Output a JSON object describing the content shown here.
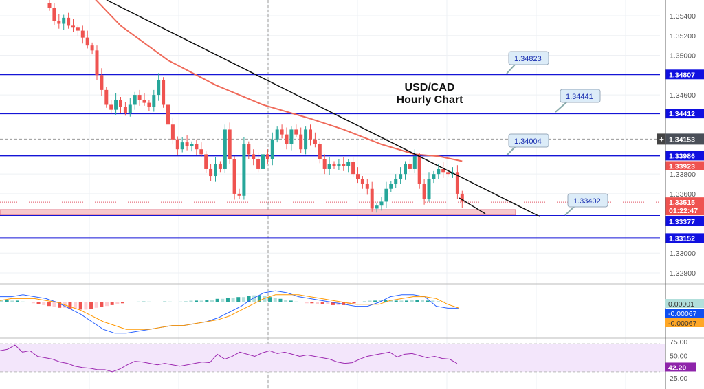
{
  "chart_data": {
    "type": "candlestick",
    "title_lines": [
      "USD/CAD",
      "Hourly Chart"
    ],
    "ylim": [
      1.327,
      1.3558
    ],
    "y_ticks": [
      "1.35400",
      "1.35200",
      "1.35000",
      "1.34600",
      "1.33800",
      "1.33600",
      "1.33000",
      "1.32800"
    ],
    "closes": [
      1.3548,
      1.3535,
      1.3532,
      1.3538,
      1.353,
      1.3528,
      1.3525,
      1.3518,
      1.351,
      1.3505,
      1.348,
      1.3465,
      1.345,
      1.3445,
      1.3455,
      1.3448,
      1.3442,
      1.345,
      1.346,
      1.3455,
      1.3452,
      1.3448,
      1.346,
      1.3475,
      1.345,
      1.343,
      1.3415,
      1.3405,
      1.3412,
      1.3408,
      1.341,
      1.3405,
      1.34,
      1.3385,
      1.3378,
      1.339,
      1.3385,
      1.3425,
      1.3395,
      1.336,
      1.3358,
      1.341,
      1.34,
      1.3395,
      1.3385,
      1.34,
      1.3395,
      1.3415,
      1.3425,
      1.342,
      1.341,
      1.3425,
      1.342,
      1.3405,
      1.3425,
      1.3415,
      1.341,
      1.3395,
      1.3385,
      1.339,
      1.3388,
      1.339,
      1.3388,
      1.3392,
      1.338,
      1.3375,
      1.337,
      1.3365,
      1.3345,
      1.3348,
      1.3352,
      1.3365,
      1.337,
      1.3375,
      1.338,
      1.339,
      1.3385,
      1.3398,
      1.337,
      1.3355,
      1.3375,
      1.338,
      1.3385,
      1.3382,
      1.338,
      1.3382,
      1.336,
      1.3352
    ],
    "moving_average": [
      [
        9,
        1.356
      ],
      [
        15,
        1.353
      ],
      [
        25,
        1.3495
      ],
      [
        35,
        1.347
      ],
      [
        45,
        1.345
      ],
      [
        55,
        1.3436
      ],
      [
        62,
        1.3425
      ],
      [
        70,
        1.341
      ],
      [
        77,
        1.34
      ],
      [
        82,
        1.3398
      ],
      [
        87,
        1.3393
      ]
    ],
    "horizontal_levels": [
      {
        "price": 1.34807,
        "label": "1.34807",
        "callout": "1.34823"
      },
      {
        "price": 1.34412,
        "label": "1.34412",
        "callout": "1.34441"
      },
      {
        "price": 1.33986,
        "label": "1.33986",
        "callout": "1.34004"
      },
      {
        "price": 1.33377,
        "label": "1.33377",
        "callout": "1.33402"
      },
      {
        "price": 1.33152,
        "label": "1.33152",
        "callout": ""
      }
    ],
    "crosshair_price": "1.34153",
    "last_price": "1.33515",
    "countdown": "01:22:47",
    "ma_value": "1.33923",
    "macd": {
      "values": [
        "0.00001",
        "-0.00067",
        "-0.00067"
      ],
      "histogram": [
        3,
        3,
        2,
        2,
        1,
        0,
        -1,
        -2,
        -3,
        -4,
        -5,
        -6,
        -6,
        -7,
        -7,
        -8,
        -8,
        -7,
        -6,
        -5,
        -4,
        -3,
        -2,
        -1,
        0,
        0,
        1,
        1,
        1,
        0,
        0,
        1,
        1,
        0,
        1,
        1,
        2,
        2,
        2,
        3,
        3,
        4,
        4,
        5,
        5,
        6,
        6,
        7,
        8,
        8,
        7,
        6,
        5,
        4,
        3,
        2,
        1,
        0,
        -1,
        -1,
        -2,
        -2,
        -2,
        -3,
        -3,
        -3,
        -2,
        -1,
        0,
        1,
        2,
        2,
        3,
        3,
        3,
        2,
        2,
        2,
        3,
        3,
        3,
        2,
        2,
        1,
        1,
        0,
        0,
        0
      ],
      "line": [
        3,
        3,
        4,
        3,
        2,
        0,
        -3,
        -6,
        -10,
        -14,
        -16,
        -16,
        -15,
        -14,
        -13,
        -12,
        -12,
        -11,
        -10,
        -8,
        -5,
        -2,
        2,
        5,
        6,
        5,
        3,
        2,
        1,
        0,
        -1,
        -2,
        -2,
        0,
        3,
        4,
        4,
        3,
        -2,
        -3,
        -3
      ],
      "signal": [
        1,
        2,
        2,
        2,
        1,
        0,
        -2,
        -4,
        -7,
        -10,
        -12,
        -14,
        -14,
        -14,
        -13,
        -12,
        -12,
        -11,
        -10,
        -9,
        -7,
        -4,
        -1,
        2,
        4,
        4,
        4,
        3,
        2,
        1,
        0,
        -1,
        -1,
        -1,
        1,
        2,
        3,
        3,
        2,
        -1,
        -3
      ]
    },
    "rsi": {
      "value": "42.20",
      "ticks": [
        "75.00",
        "50.00",
        "25.00"
      ],
      "values": [
        60,
        62,
        68,
        58,
        60,
        52,
        50,
        48,
        44,
        42,
        38,
        36,
        35,
        33,
        33,
        30,
        34,
        40,
        45,
        44,
        42,
        40,
        42,
        40,
        38,
        40,
        42,
        44,
        43,
        55,
        48,
        52,
        58,
        55,
        52,
        57,
        60,
        56,
        58,
        55,
        52,
        54,
        52,
        50,
        48,
        44,
        42,
        43,
        48,
        52,
        54,
        56,
        58,
        51,
        55,
        56,
        53,
        50,
        52,
        49,
        48,
        42
      ]
    }
  }
}
